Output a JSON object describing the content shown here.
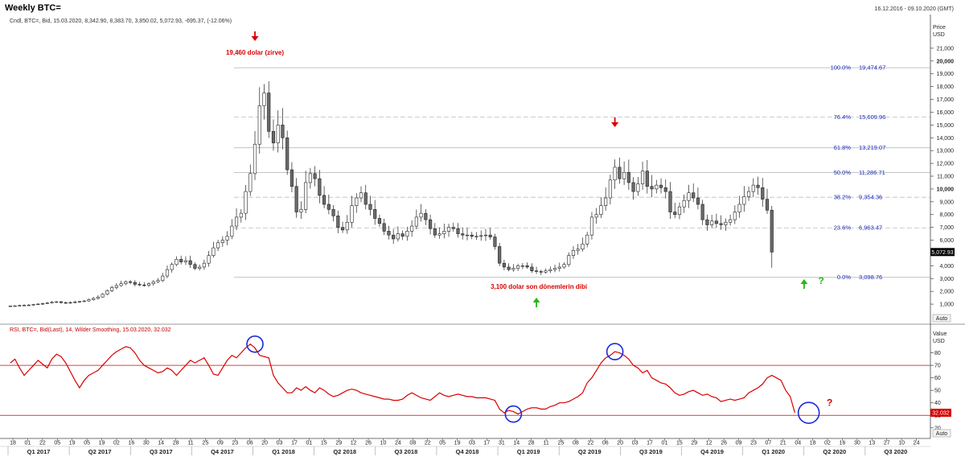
{
  "header": {
    "title": "Weekly BTC=",
    "date_range": "16.12.2016 - 09.10.2020 (GMT)",
    "price_info": "Cndl, BTC=, Bid, 15.03.2020, 8,342.90, 8,383.70, 3,850.02, 5,072.93, -695.37, (-12.06%)"
  },
  "chart_data": [
    {
      "type": "candlestick",
      "title": "Weekly BTC=",
      "ylabel": "Price",
      "yunit": "USD",
      "ylim": [
        0,
        22000
      ],
      "yticks": [
        1000,
        2000,
        3000,
        4000,
        5000,
        6000,
        7000,
        8000,
        9000,
        10000,
        11000,
        12000,
        13000,
        14000,
        15000,
        16000,
        17000,
        18000,
        19000,
        20000,
        21000
      ],
      "ytick_labels": [
        "1,000",
        "2,000",
        "3,000",
        "4,000",
        "5,000",
        "6,000",
        "7,000",
        "8,000",
        "9,000",
        "10,000",
        "11,000",
        "12,000",
        "13,000",
        "14,000",
        "15,000",
        "16,000",
        "17,000",
        "18,000",
        "19,000",
        "20,000",
        "21,000"
      ],
      "auto_label": "Auto",
      "last_price_label": "5,072.93",
      "price_series": [
        860,
        870,
        900,
        920,
        930,
        980,
        1010,
        1050,
        1090,
        1150,
        1190,
        1120,
        1080,
        1130,
        1170,
        1210,
        1250,
        1350,
        1450,
        1560,
        1780,
        2050,
        2300,
        2450,
        2600,
        2750,
        2700,
        2550,
        2500,
        2480,
        2600,
        2750,
        2850,
        3200,
        3700,
        4100,
        4500,
        4300,
        4400,
        4100,
        3800,
        3900,
        4200,
        4800,
        5400,
        5800,
        6000,
        6300,
        7100,
        7800,
        8100,
        9800,
        11200,
        13500,
        16500,
        17500,
        14500,
        13600,
        15000,
        14000,
        11500,
        10200,
        8200,
        8400,
        10500,
        11200,
        10800,
        9500,
        8800,
        8400,
        7900,
        7000,
        6800,
        7400,
        8700,
        9300,
        9700,
        8800,
        8400,
        7700,
        7300,
        6700,
        6400,
        6100,
        6500,
        6300,
        6700,
        7100,
        7800,
        8100,
        7600,
        6900,
        6400,
        6500,
        6700,
        7000,
        6900,
        6500,
        6400,
        6400,
        6300,
        6300,
        6350,
        6400,
        6250,
        5500,
        4200,
        3900,
        3700,
        3800,
        4000,
        4000,
        3900,
        3600,
        3550,
        3500,
        3600,
        3700,
        3800,
        3900,
        4100,
        4800,
        5200,
        5300,
        5700,
        6400,
        7800,
        8000,
        8700,
        9300,
        10700,
        11700,
        10800,
        11300,
        10500,
        9800,
        10400,
        11400,
        10200,
        10000,
        10300,
        10100,
        9800,
        8200,
        8000,
        8600,
        9100,
        9700,
        9300,
        8800,
        7600,
        7200,
        7500,
        7300,
        7200,
        7400,
        7600,
        8200,
        8800,
        9400,
        9800,
        10300,
        10100,
        9200,
        8342.9,
        5072.93
      ],
      "x_start": "2016-12-18",
      "x_step_days": 7,
      "xlim": [
        "2016-12-16",
        "2020-10-09"
      ],
      "quarter_labels": [
        "Q1 2017",
        "Q2 2017",
        "Q3 2017",
        "Q4 2017",
        "Q1 2018",
        "Q2 2018",
        "Q3 2018",
        "Q4 2018",
        "Q1 2019",
        "Q2 2019",
        "Q3 2019",
        "Q4 2019",
        "Q1 2020",
        "Q2 2020",
        "Q3 2020"
      ],
      "week_day_labels": [
        "18",
        "01",
        "22",
        "05",
        "19",
        "05",
        "19",
        "02",
        "16",
        "30",
        "14",
        "28",
        "11",
        "25",
        "09",
        "23",
        "06",
        "20",
        "03",
        "17",
        "01",
        "15",
        "29",
        "12",
        "26",
        "10",
        "24",
        "08",
        "22",
        "05",
        "19",
        "03",
        "17",
        "31",
        "14",
        "28",
        "11",
        "25",
        "08",
        "22",
        "06",
        "20",
        "03",
        "17",
        "01",
        "15",
        "29",
        "12",
        "26",
        "09",
        "23",
        "07",
        "21",
        "04",
        "18",
        "02",
        "16",
        "30",
        "13",
        "27",
        "10",
        "24"
      ],
      "fibonacci": [
        {
          "pct": "100.0%",
          "value": 19474.67,
          "label": "19,474.67"
        },
        {
          "pct": "76.4%",
          "value": 15609.96,
          "label": "15,609.96"
        },
        {
          "pct": "61.8%",
          "value": 13219.07,
          "label": "13,219.07"
        },
        {
          "pct": "50.0%",
          "value": 11286.71,
          "label": "11,286.71"
        },
        {
          "pct": "38.2%",
          "value": 9354.36,
          "label": "9,354.36"
        },
        {
          "pct": "23.6%",
          "value": 6963.47,
          "label": "6,963.47"
        },
        {
          "pct": "0.0%",
          "value": 3098.76,
          "label": "3,098.76"
        }
      ],
      "annotations": [
        {
          "text": "19,460 dolar (zirve)",
          "at_index": 53,
          "value": 19460
        },
        {
          "text": "3,100 dolar son dönemlerin dibi",
          "at_index": 114,
          "value": 3100
        }
      ],
      "arrows": [
        {
          "direction": "down",
          "color": "#d80000",
          "at_index": 53,
          "value": 19460
        },
        {
          "direction": "down",
          "color": "#d80000",
          "at_index": 131,
          "value": 13900
        },
        {
          "direction": "up",
          "color": "#22b814",
          "at_index": 114,
          "value": 3100
        },
        {
          "direction": "up",
          "color": "#22b814",
          "at_index": 172,
          "value": 3850
        }
      ],
      "question_marks": [
        {
          "text": "?",
          "color": "#22b814",
          "at_index": 175,
          "value": 3850
        }
      ]
    },
    {
      "type": "line",
      "series_name": "RSI, BTC=, Bid(Last), 14, Wilder Smoothing, 15.03.2020, 32.032",
      "ylabel": "Value",
      "yunit": "USD",
      "ylim": [
        16,
        92
      ],
      "yticks": [
        20,
        30,
        40,
        50,
        60,
        70,
        80
      ],
      "ytick_labels": [
        "20",
        "30",
        "40",
        "50",
        "60",
        "70",
        "80"
      ],
      "auto_label": "Auto",
      "last_value_label": "32.032",
      "levels": [
        70,
        30
      ],
      "values": [
        72,
        75,
        68,
        62,
        66,
        70,
        74,
        71,
        68,
        75,
        79,
        77,
        72,
        65,
        58,
        52,
        58,
        62,
        64,
        66,
        70,
        74,
        78,
        81,
        83,
        85,
        84,
        80,
        74,
        70,
        68,
        66,
        64,
        65,
        68,
        66,
        62,
        66,
        70,
        74,
        72,
        74,
        76,
        70,
        63,
        62,
        68,
        74,
        78,
        76,
        80,
        84,
        87,
        84,
        78,
        77,
        76,
        62,
        56,
        52,
        48,
        48,
        52,
        50,
        53,
        50,
        48,
        52,
        50,
        47,
        45,
        46,
        48,
        50,
        51,
        50,
        48,
        47,
        46,
        45,
        44,
        43,
        43,
        42,
        42,
        43,
        46,
        48,
        46,
        44,
        43,
        42,
        45,
        48,
        46,
        45,
        46,
        47,
        46,
        45,
        45,
        44,
        44,
        44,
        43,
        42,
        35,
        32,
        34,
        33,
        31,
        33,
        35,
        36,
        36,
        35,
        35,
        37,
        38,
        40,
        40,
        41,
        43,
        45,
        48,
        56,
        60,
        66,
        72,
        76,
        78,
        81,
        80,
        78,
        75,
        70,
        68,
        64,
        66,
        60,
        58,
        56,
        55,
        52,
        48,
        46,
        47,
        49,
        50,
        48,
        46,
        47,
        45,
        44,
        41,
        42,
        43,
        42,
        43,
        44,
        48,
        50,
        52,
        55,
        60,
        62,
        60,
        58,
        50,
        45,
        32.032
      ],
      "circles": [
        {
          "at_index": 53,
          "value": 87
        },
        {
          "at_index": 109,
          "value": 31
        },
        {
          "at_index": 131,
          "value": 81
        },
        {
          "at_index": 173,
          "value": 32
        }
      ],
      "question_marks": [
        {
          "text": "?",
          "color": "#d80000",
          "at_index": 177,
          "value": 40
        }
      ]
    }
  ],
  "colors": {
    "bull_fill": "#ffffff",
    "bear_fill": "#6a6a6a",
    "candle_stroke": "#222222",
    "rsi_line": "#d80000",
    "level_line": "#d80000",
    "fib_text": "#1c2ab8",
    "fib_line": "#bbbbbb",
    "circle": "#1b2bd8",
    "last_badge": "#000000",
    "rsi_badge": "#d80000"
  }
}
